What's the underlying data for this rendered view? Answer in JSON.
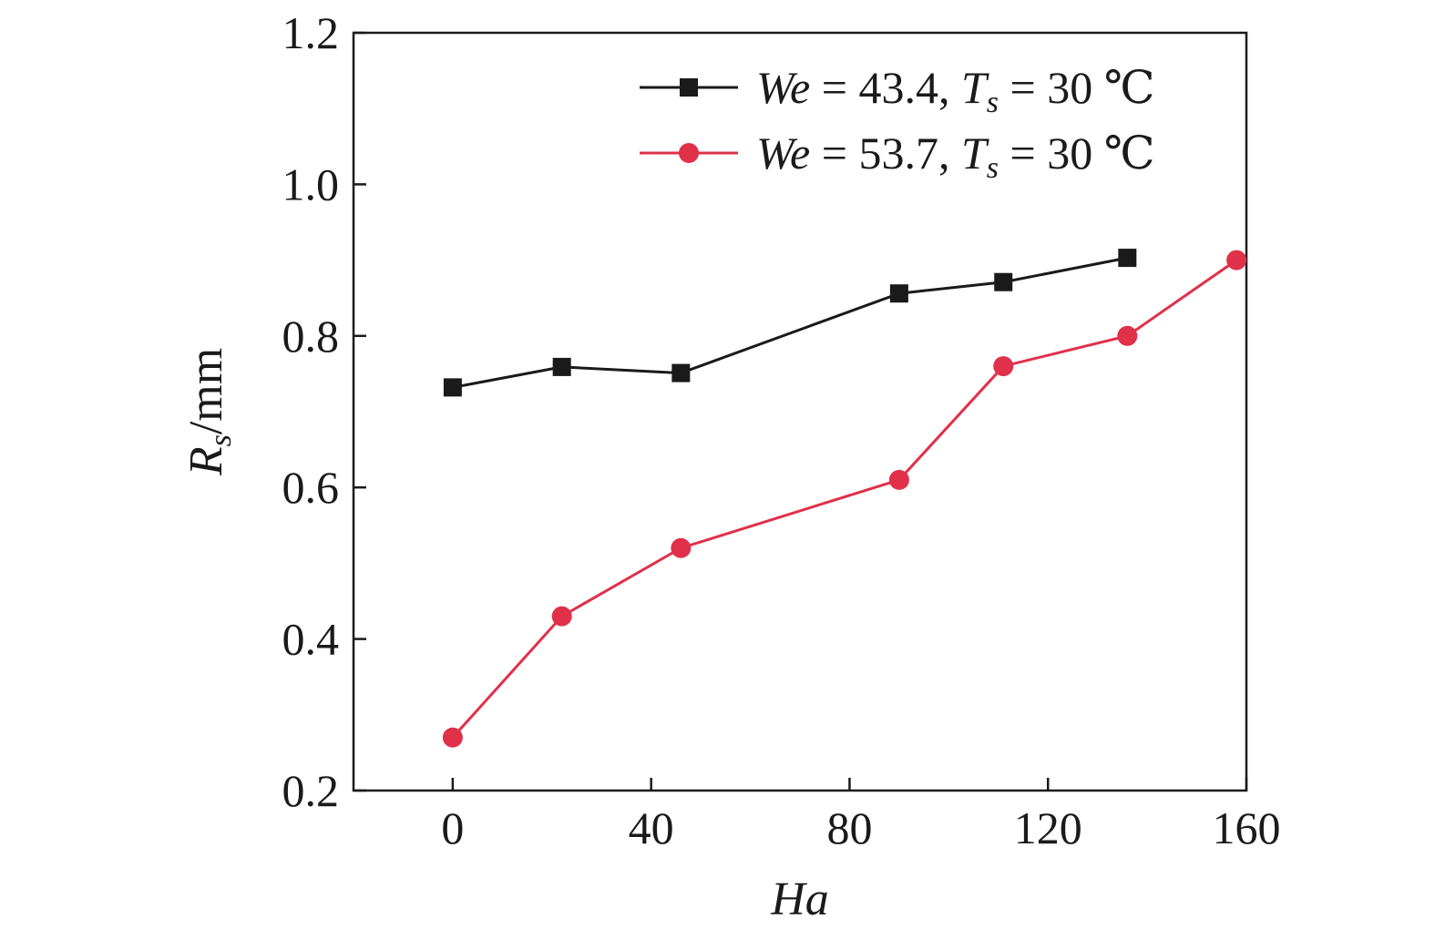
{
  "chart_data": {
    "type": "line",
    "xlabel": "Ha",
    "ylabel": {
      "base": "R",
      "sub": "s",
      "rest": "/mm"
    },
    "xlim": [
      -20,
      160
    ],
    "ylim": [
      0.2,
      1.2
    ],
    "xticks": [
      0,
      40,
      80,
      120,
      160
    ],
    "yticks": [
      0.2,
      0.4,
      0.6,
      0.8,
      1.0,
      1.2
    ],
    "ytick_labels": [
      "0.2",
      "0.4",
      "0.6",
      "0.8",
      "1.0",
      "1.2"
    ],
    "xtick_labels": [
      "0",
      "40",
      "80",
      "120",
      "160"
    ],
    "grid": false,
    "legend_position": "top-right",
    "series": [
      {
        "label": {
          "we_sym": "We",
          "we_val": " = 43.4, ",
          "t_sym": "T",
          "t_sub": "s",
          "t_val": " = 30 ℃"
        },
        "color": "#1a1a1a",
        "marker": "square",
        "x": [
          0,
          22,
          46,
          90,
          111,
          136
        ],
        "y": [
          0.732,
          0.759,
          0.751,
          0.856,
          0.871,
          0.903
        ]
      },
      {
        "label": {
          "we_sym": "We",
          "we_val": " = 53.7, ",
          "t_sym": "T",
          "t_sub": "s",
          "t_val": " = 30 ℃"
        },
        "color": "#e0304a",
        "marker": "circle",
        "x": [
          0,
          22,
          46,
          90,
          111,
          136,
          158
        ],
        "y": [
          0.27,
          0.43,
          0.52,
          0.61,
          0.76,
          0.8,
          0.9
        ]
      }
    ]
  }
}
